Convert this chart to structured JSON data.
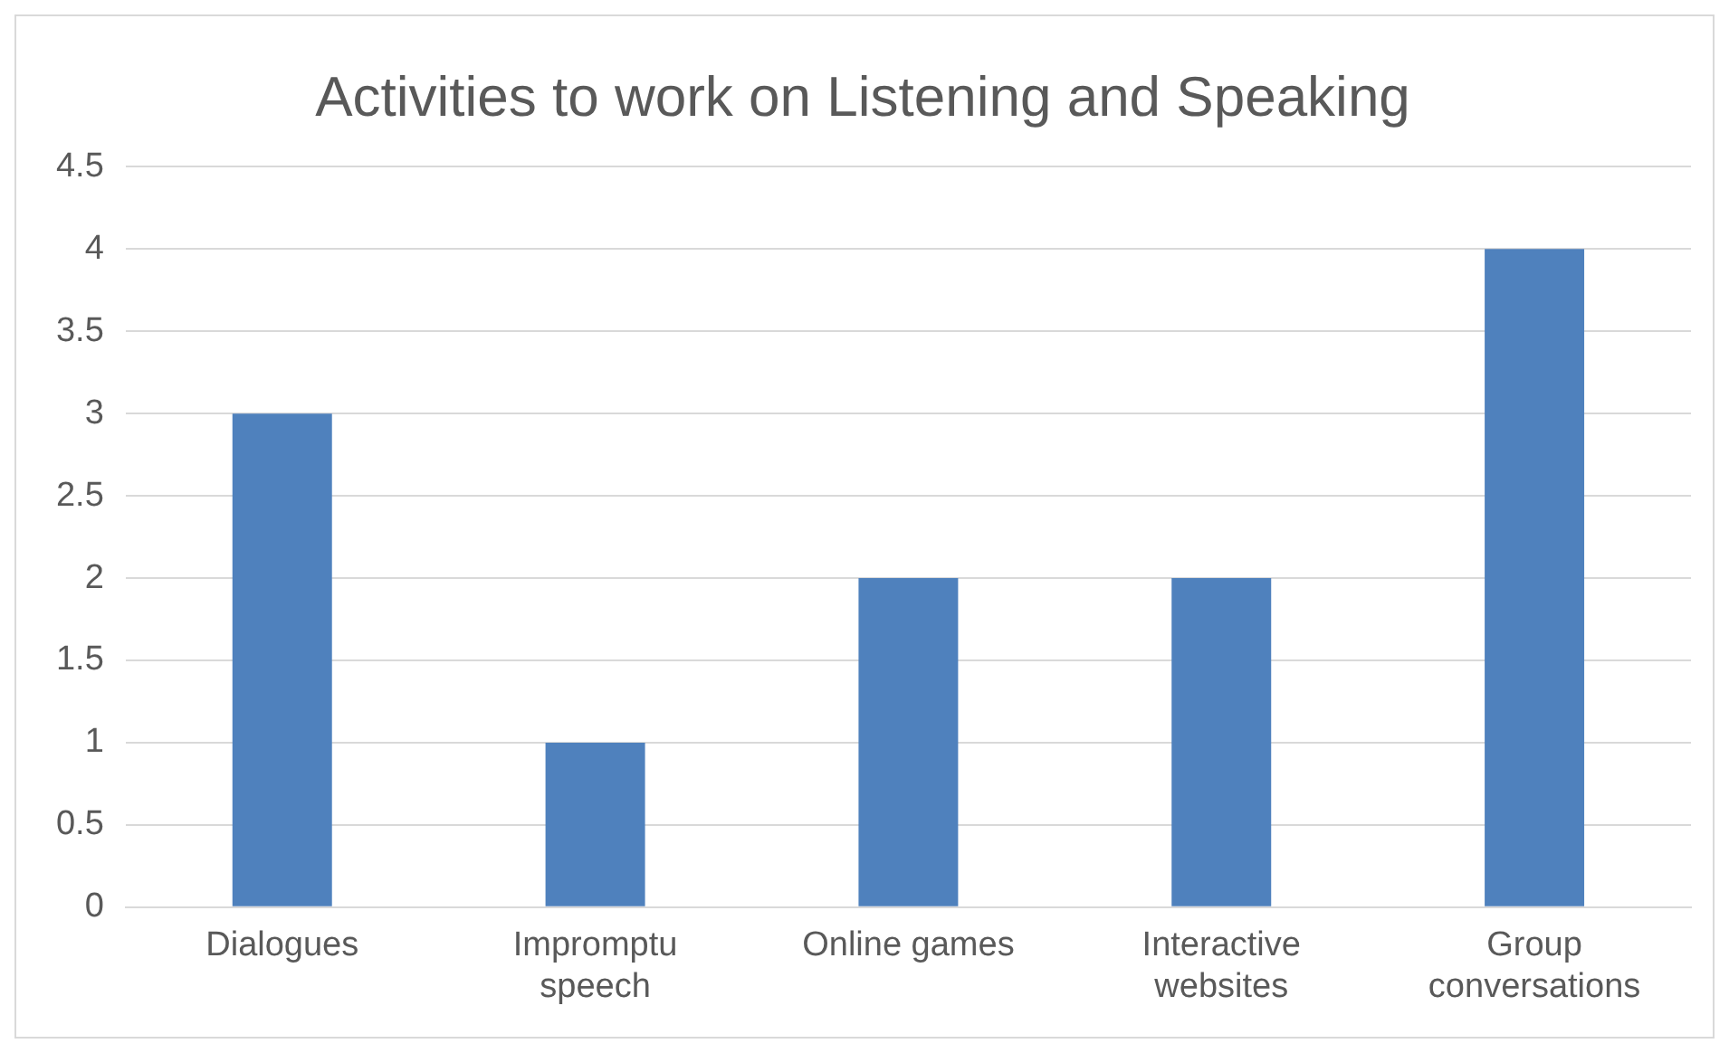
{
  "chart_data": {
    "type": "bar",
    "title": "Activities to work on Listening and Speaking",
    "categories": [
      "Dialogues",
      "Impromptu speech",
      "Online games",
      "Interactive websites",
      "Group conversations"
    ],
    "values": [
      3,
      1,
      2,
      2,
      4
    ],
    "color": "#4f81bd",
    "ylim": [
      0,
      4.5
    ],
    "yticks": [
      0,
      0.5,
      1,
      1.5,
      2,
      2.5,
      3,
      3.5,
      4,
      4.5
    ],
    "grid": "y"
  }
}
